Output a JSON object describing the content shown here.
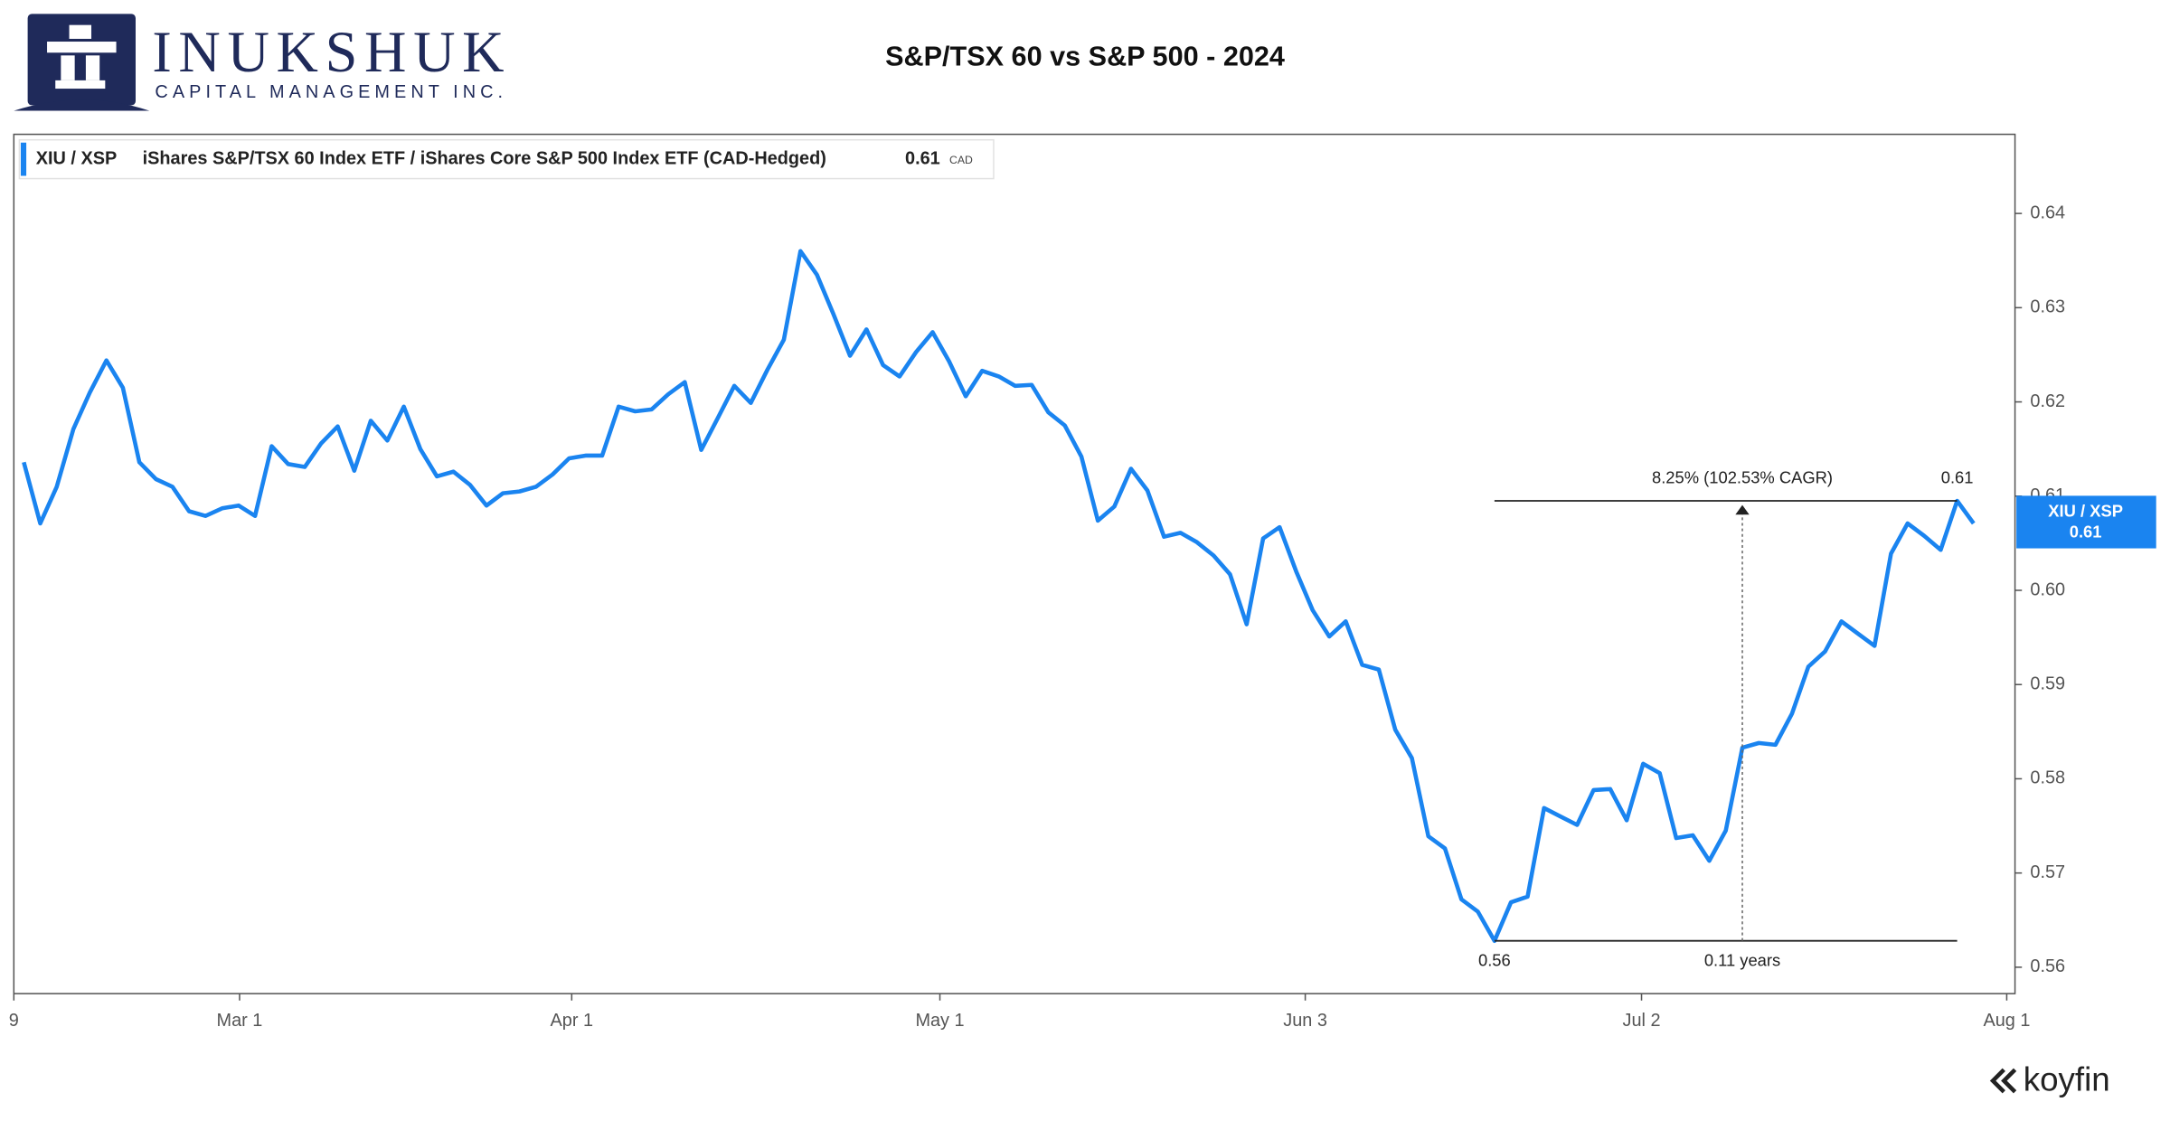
{
  "header": {
    "brand": "INUKSHUK",
    "tagline": "CAPITAL MANAGEMENT INC."
  },
  "footer": {
    "brand": "koyfin"
  },
  "chart_data": {
    "type": "line",
    "title": "S&P/TSX 60 vs S&P 500 - 2024",
    "legend": {
      "ticker": "XIU / XSP",
      "description": "iShares S&P/TSX 60 Index ETF / iShares Core S&P 500 Index ETF (CAD-Hedged)",
      "value": "0.61",
      "unit": "CAD"
    },
    "price_tag": {
      "value": "0.61"
    },
    "series": [
      {
        "name": "XIU / XSP",
        "color": "#1a84f0",
        "values": [
          0.6136,
          0.6071,
          0.611,
          0.6171,
          0.621,
          0.6244,
          0.6215,
          0.6136,
          0.6118,
          0.611,
          0.6084,
          0.6079,
          0.6087,
          0.609,
          0.6079,
          0.6153,
          0.6134,
          0.6131,
          0.6156,
          0.6174,
          0.6127,
          0.618,
          0.6159,
          0.6195,
          0.615,
          0.6121,
          0.6126,
          0.6112,
          0.609,
          0.6103,
          0.6105,
          0.611,
          0.6123,
          0.614,
          0.6143,
          0.6143,
          0.6195,
          0.619,
          0.6192,
          0.6208,
          0.6221,
          0.6149,
          0.6183,
          0.6217,
          0.6199,
          0.6234,
          0.6266,
          0.636,
          0.6335,
          0.6293,
          0.6249,
          0.6277,
          0.6239,
          0.6227,
          0.6253,
          0.6274,
          0.6243,
          0.6206,
          0.6233,
          0.6227,
          0.6217,
          0.6218,
          0.6189,
          0.6175,
          0.6142,
          0.6074,
          0.6089,
          0.6129,
          0.6106,
          0.6057,
          0.6061,
          0.6051,
          0.6037,
          0.6017,
          0.5964,
          0.6055,
          0.6067,
          0.602,
          0.5979,
          0.5951,
          0.5967,
          0.5921,
          0.5916,
          0.5852,
          0.5822,
          0.5739,
          0.5726,
          0.5672,
          0.5659,
          0.5628,
          0.5669,
          0.5675,
          0.5769,
          0.576,
          0.5751,
          0.5788,
          0.5789,
          0.5756,
          0.5816,
          0.5806,
          0.5737,
          0.574,
          0.5713,
          0.5745,
          0.5833,
          0.5838,
          0.5836,
          0.5869,
          0.5919,
          0.5935,
          0.5967,
          0.5954,
          0.5941,
          0.6039,
          0.6071,
          0.6058,
          0.6043,
          0.6095,
          0.6071
        ]
      }
    ],
    "xlim": [
      -0.6,
      120.5
    ],
    "xticks": [
      {
        "value": -0.6,
        "label": "9"
      },
      {
        "value": 13.06,
        "label": "Mar 1"
      },
      {
        "value": 33.16,
        "label": "Apr 1"
      },
      {
        "value": 55.44,
        "label": "May 1"
      },
      {
        "value": 77.55,
        "label": "Jun 3"
      },
      {
        "value": 97.9,
        "label": "Jul 2"
      },
      {
        "value": 120.0,
        "label": "Aug 1"
      }
    ],
    "ylim": [
      0.5572,
      0.6484
    ],
    "yticks": [
      0.56,
      0.57,
      0.58,
      0.59,
      {
        "value": 0.6,
        "label": "0.60"
      },
      0.61,
      0.62,
      0.63,
      0.64
    ],
    "annotations": {
      "change": "8.25% (102.53% CAGR)",
      "end_label": "0.61",
      "start_label": "0.56",
      "duration": "0.11 years"
    }
  }
}
